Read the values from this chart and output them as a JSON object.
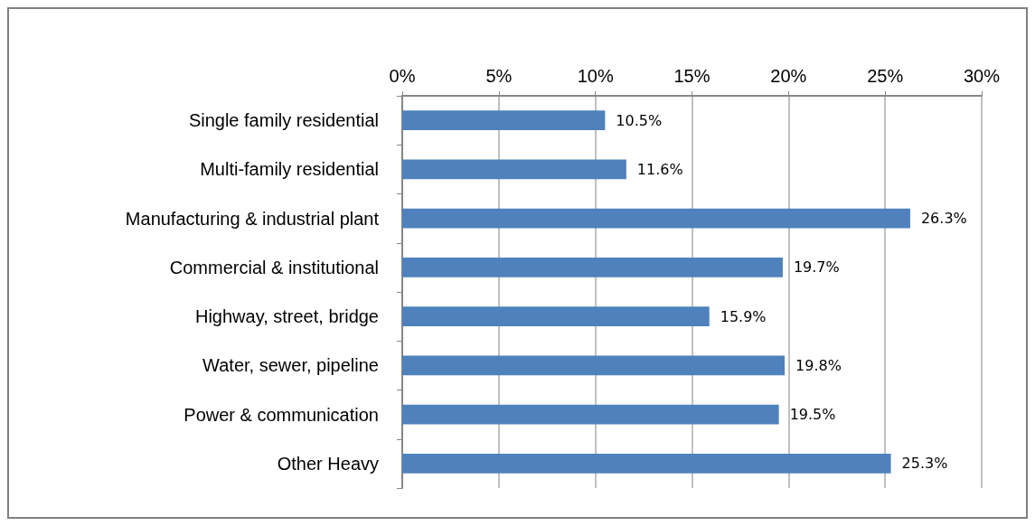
{
  "chart_data": {
    "type": "bar",
    "orientation": "horizontal",
    "categories": [
      "Single family residential",
      "Multi-family residential",
      "Manufacturing & industrial plant",
      "Commercial & institutional",
      "Highway, street, bridge",
      "Water, sewer, pipeline",
      "Power & communication",
      "Other Heavy"
    ],
    "values": [
      10.5,
      11.6,
      26.3,
      19.7,
      15.9,
      19.8,
      19.5,
      25.3
    ],
    "value_labels": [
      "10.5%",
      "11.6%",
      "26.3%",
      "19.7%",
      "15.9%",
      "19.8%",
      "19.5%",
      "25.3%"
    ],
    "color": "#4f81bd",
    "xlim": [
      0,
      30
    ],
    "xticks": [
      {
        "value": 0,
        "label": "0%"
      },
      {
        "value": 5,
        "label": "5%"
      },
      {
        "value": 10,
        "label": "10%"
      },
      {
        "value": 15,
        "label": "15%"
      },
      {
        "value": 20,
        "label": "20%"
      },
      {
        "value": 25,
        "label": "25%"
      },
      {
        "value": 30,
        "label": "30%"
      }
    ],
    "grid": "x"
  }
}
